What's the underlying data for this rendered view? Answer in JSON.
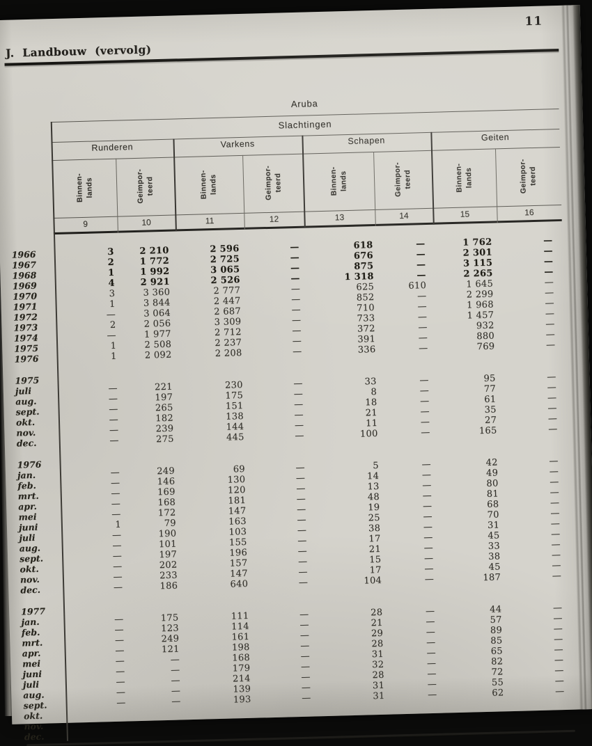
{
  "page": {
    "number": "11",
    "title": "J.  Landbouw  (vervolg)"
  },
  "colors": {
    "page_bg": "#d5d3cc",
    "ink": "#1f1e1a",
    "scan_bg": "#0b0b0a"
  },
  "table": {
    "region": "Aruba",
    "section": "Slachtingen",
    "groups": [
      {
        "name": "Runderen",
        "columns": [
          "Binnen-\nlands",
          "Geimpor-\nteerd"
        ]
      },
      {
        "name": "Varkens",
        "columns": [
          "Binnen-\nlands",
          "Geimpor-\nteerd"
        ]
      },
      {
        "name": "Schapen",
        "columns": [
          "Binnen-\nlands",
          "Geimpor-\nteerd"
        ]
      },
      {
        "name": "Geiten",
        "columns": [
          "Binnen-\nlands",
          "Geimpor-\nteerd"
        ]
      }
    ],
    "column_numbers": [
      "9",
      "10",
      "11",
      "12",
      "13",
      "14",
      "15",
      "16"
    ],
    "sections": [
      {
        "label": "",
        "rows": [
          {
            "label": "1966",
            "bold": true,
            "values": [
              "3",
              "2 210",
              "2 596",
              "—",
              "618",
              "—",
              "1 762",
              "—"
            ]
          },
          {
            "label": "1967",
            "bold": true,
            "values": [
              "2",
              "1 772",
              "2 725",
              "—",
              "676",
              "—",
              "2 301",
              "—"
            ]
          },
          {
            "label": "1968",
            "bold": true,
            "values": [
              "1",
              "1 992",
              "3 065",
              "—",
              "875",
              "—",
              "3 115",
              "—"
            ]
          },
          {
            "label": "1969",
            "bold": true,
            "values": [
              "4",
              "2 921",
              "2 526",
              "—",
              "1 318",
              "—",
              "2 265",
              "—"
            ]
          },
          {
            "label": "1970",
            "bold": false,
            "values": [
              "3",
              "3 360",
              "2 777",
              "—",
              "625",
              "610",
              "1 645",
              "—"
            ]
          },
          {
            "label": "1971",
            "bold": false,
            "values": [
              "1",
              "3 844",
              "2 447",
              "—",
              "852",
              "—",
              "2 299",
              "—"
            ]
          },
          {
            "label": "1972",
            "bold": false,
            "values": [
              "—",
              "3 064",
              "2 687",
              "—",
              "710",
              "—",
              "1 968",
              "—"
            ]
          },
          {
            "label": "1973",
            "bold": false,
            "values": [
              "2",
              "2 056",
              "3 309",
              "—",
              "733",
              "—",
              "1 457",
              "—"
            ]
          },
          {
            "label": "1974",
            "bold": false,
            "values": [
              "—",
              "1 977",
              "2 712",
              "—",
              "372",
              "—",
              "932",
              "—"
            ]
          },
          {
            "label": "1975",
            "bold": false,
            "values": [
              "1",
              "2 508",
              "2 237",
              "—",
              "391",
              "—",
              "880",
              "—"
            ]
          },
          {
            "label": "1976",
            "bold": false,
            "values": [
              "1",
              "2 092",
              "2 208",
              "—",
              "336",
              "—",
              "769",
              "—"
            ]
          }
        ]
      },
      {
        "label": "1975",
        "rows": [
          {
            "label": "juli",
            "bold": false,
            "values": [
              "—",
              "221",
              "230",
              "—",
              "33",
              "—",
              "95",
              "—"
            ]
          },
          {
            "label": "aug.",
            "bold": false,
            "values": [
              "—",
              "197",
              "175",
              "—",
              "8",
              "—",
              "77",
              "—"
            ]
          },
          {
            "label": "sept.",
            "bold": false,
            "values": [
              "—",
              "265",
              "151",
              "—",
              "18",
              "—",
              "61",
              "—"
            ]
          },
          {
            "label": "okt.",
            "bold": false,
            "values": [
              "—",
              "182",
              "138",
              "—",
              "21",
              "—",
              "35",
              "—"
            ]
          },
          {
            "label": "nov.",
            "bold": false,
            "values": [
              "—",
              "239",
              "144",
              "—",
              "11",
              "—",
              "27",
              "—"
            ]
          },
          {
            "label": "dec.",
            "bold": false,
            "values": [
              "—",
              "275",
              "445",
              "—",
              "100",
              "—",
              "165",
              "—"
            ]
          }
        ]
      },
      {
        "label": "1976",
        "rows": [
          {
            "label": "jan.",
            "bold": false,
            "values": [
              "—",
              "249",
              "69",
              "—",
              "5",
              "—",
              "42",
              "—"
            ]
          },
          {
            "label": "feb.",
            "bold": false,
            "values": [
              "—",
              "146",
              "130",
              "—",
              "14",
              "—",
              "49",
              "—"
            ]
          },
          {
            "label": "mrt.",
            "bold": false,
            "values": [
              "—",
              "169",
              "120",
              "—",
              "13",
              "—",
              "80",
              "—"
            ]
          },
          {
            "label": "apr.",
            "bold": false,
            "values": [
              "—",
              "168",
              "181",
              "—",
              "48",
              "—",
              "81",
              "—"
            ]
          },
          {
            "label": "mei",
            "bold": false,
            "values": [
              "—",
              "172",
              "147",
              "—",
              "19",
              "—",
              "68",
              "—"
            ]
          },
          {
            "label": "juni",
            "bold": false,
            "values": [
              "1",
              "79",
              "163",
              "—",
              "25",
              "—",
              "70",
              "—"
            ]
          },
          {
            "label": "juli",
            "bold": false,
            "values": [
              "—",
              "190",
              "103",
              "—",
              "38",
              "—",
              "31",
              "—"
            ]
          },
          {
            "label": "aug.",
            "bold": false,
            "values": [
              "—",
              "101",
              "155",
              "—",
              "17",
              "—",
              "45",
              "—"
            ]
          },
          {
            "label": "sept.",
            "bold": false,
            "values": [
              "—",
              "197",
              "196",
              "—",
              "21",
              "—",
              "33",
              "—"
            ]
          },
          {
            "label": "okt.",
            "bold": false,
            "values": [
              "—",
              "202",
              "157",
              "—",
              "15",
              "—",
              "38",
              "—"
            ]
          },
          {
            "label": "nov.",
            "bold": false,
            "values": [
              "—",
              "233",
              "147",
              "—",
              "17",
              "—",
              "45",
              "—"
            ]
          },
          {
            "label": "dec.",
            "bold": false,
            "values": [
              "—",
              "186",
              "640",
              "—",
              "104",
              "—",
              "187",
              "—"
            ]
          }
        ]
      },
      {
        "label": "1977",
        "rows": [
          {
            "label": "jan.",
            "bold": false,
            "values": [
              "—",
              "175",
              "111",
              "—",
              "28",
              "—",
              "44",
              "—"
            ]
          },
          {
            "label": "feb.",
            "bold": false,
            "values": [
              "—",
              "123",
              "114",
              "—",
              "21",
              "—",
              "57",
              "—"
            ]
          },
          {
            "label": "mrt.",
            "bold": false,
            "values": [
              "—",
              "249",
              "161",
              "—",
              "29",
              "—",
              "89",
              "—"
            ]
          },
          {
            "label": "apr.",
            "bold": false,
            "values": [
              "—",
              "121",
              "198",
              "—",
              "28",
              "—",
              "85",
              "—"
            ]
          },
          {
            "label": "mei",
            "bold": false,
            "values": [
              "—",
              "—",
              "168",
              "—",
              "31",
              "—",
              "65",
              "—"
            ]
          },
          {
            "label": "juni",
            "bold": false,
            "values": [
              "—",
              "—",
              "179",
              "—",
              "32",
              "—",
              "82",
              "—"
            ]
          },
          {
            "label": "juli",
            "bold": false,
            "values": [
              "—",
              "—",
              "214",
              "—",
              "28",
              "—",
              "72",
              "—"
            ]
          },
          {
            "label": "aug.",
            "bold": false,
            "values": [
              "—",
              "—",
              "139",
              "—",
              "31",
              "—",
              "55",
              "—"
            ]
          },
          {
            "label": "sept.",
            "bold": false,
            "values": [
              "—",
              "—",
              "193",
              "—",
              "31",
              "—",
              "62",
              "—"
            ]
          },
          {
            "label": "okt.",
            "bold": false,
            "values": [
              "",
              "",
              "",
              "",
              "",
              "",
              "",
              ""
            ]
          },
          {
            "label": "nov.",
            "bold": false,
            "values": [
              "",
              "",
              "",
              "",
              "",
              "",
              "",
              ""
            ]
          },
          {
            "label": "dec.",
            "bold": false,
            "values": [
              "",
              "",
              "",
              "",
              "",
              "",
              "",
              ""
            ]
          }
        ]
      }
    ]
  }
}
